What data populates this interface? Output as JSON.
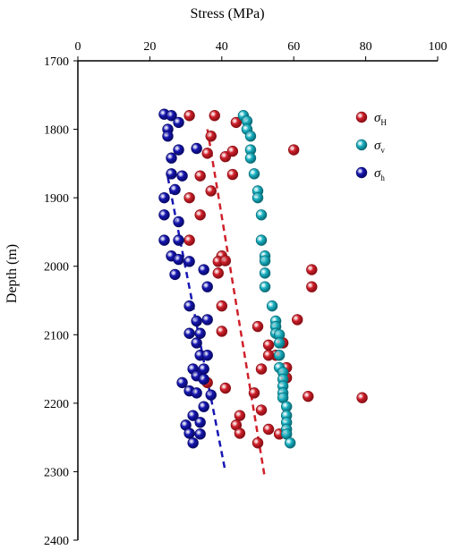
{
  "chart_data": {
    "type": "scatter",
    "xlabel": "Stress (MPa)",
    "ylabel": "Depth (m)",
    "xlim": [
      0,
      100
    ],
    "ylim": [
      1700,
      2400
    ],
    "x_axis_position": "top",
    "y_axis_inverted": true,
    "x_ticks": [
      0,
      20,
      40,
      60,
      80,
      100
    ],
    "y_ticks": [
      1700,
      1800,
      1900,
      2000,
      2100,
      2200,
      2300,
      2400
    ],
    "grid": false,
    "legend_position": "top-right",
    "series": [
      {
        "name": "σH",
        "symbol": "σ",
        "subscript": "H",
        "color": "#d0202a",
        "edge": "#8a0f15",
        "points": [
          [
            31,
            1780
          ],
          [
            38,
            1780
          ],
          [
            44,
            1790
          ],
          [
            37,
            1810
          ],
          [
            36,
            1835
          ],
          [
            41,
            1840
          ],
          [
            43,
            1832
          ],
          [
            60,
            1830
          ],
          [
            34,
            1868
          ],
          [
            43,
            1866
          ],
          [
            37,
            1890
          ],
          [
            31,
            1900
          ],
          [
            34,
            1925
          ],
          [
            31,
            1962
          ],
          [
            40,
            1985
          ],
          [
            39,
            1993
          ],
          [
            41,
            1992
          ],
          [
            39,
            2010
          ],
          [
            65,
            2005
          ],
          [
            65,
            2030
          ],
          [
            40,
            2058
          ],
          [
            50,
            2088
          ],
          [
            61,
            2078
          ],
          [
            40,
            2095
          ],
          [
            53,
            2115
          ],
          [
            57,
            2112
          ],
          [
            55,
            2130
          ],
          [
            53,
            2130
          ],
          [
            58,
            2148
          ],
          [
            51,
            2150
          ],
          [
            58,
            2163
          ],
          [
            36,
            2170
          ],
          [
            41,
            2178
          ],
          [
            49,
            2185
          ],
          [
            64,
            2190
          ],
          [
            79,
            2192
          ],
          [
            51,
            2210
          ],
          [
            45,
            2218
          ],
          [
            44,
            2232
          ],
          [
            45,
            2244
          ],
          [
            53,
            2238
          ],
          [
            56,
            2245
          ],
          [
            50,
            2258
          ]
        ],
        "trend_x": [
          36,
          52
        ],
        "trend_y": [
          1800,
          2310
        ]
      },
      {
        "name": "σv",
        "symbol": "σ",
        "subscript": "v",
        "color": "#1ab3c4",
        "edge": "#0b6d78",
        "points": [
          [
            46,
            1780
          ],
          [
            47,
            1788
          ],
          [
            47,
            1800
          ],
          [
            48,
            1810
          ],
          [
            48,
            1830
          ],
          [
            48,
            1842
          ],
          [
            49,
            1865
          ],
          [
            50,
            1890
          ],
          [
            50,
            1900
          ],
          [
            51,
            1925
          ],
          [
            51,
            1962
          ],
          [
            52,
            1985
          ],
          [
            52,
            1992
          ],
          [
            52,
            2010
          ],
          [
            52,
            2030
          ],
          [
            54,
            2058
          ],
          [
            55,
            2080
          ],
          [
            55,
            2088
          ],
          [
            55,
            2098
          ],
          [
            56,
            2100
          ],
          [
            56,
            2112
          ],
          [
            56,
            2130
          ],
          [
            56,
            2148
          ],
          [
            57,
            2155
          ],
          [
            57,
            2165
          ],
          [
            57,
            2175
          ],
          [
            57,
            2185
          ],
          [
            57,
            2192
          ],
          [
            58,
            2205
          ],
          [
            58,
            2218
          ],
          [
            58,
            2228
          ],
          [
            58,
            2238
          ],
          [
            58,
            2245
          ],
          [
            59,
            2258
          ]
        ],
        "trend_x": [],
        "trend_y": []
      },
      {
        "name": "σh",
        "symbol": "σ",
        "subscript": "h",
        "color": "#1616b3",
        "edge": "#0a0a6a",
        "points": [
          [
            24,
            1778
          ],
          [
            26,
            1780
          ],
          [
            28,
            1790
          ],
          [
            25,
            1800
          ],
          [
            25,
            1810
          ],
          [
            28,
            1830
          ],
          [
            33,
            1828
          ],
          [
            26,
            1842
          ],
          [
            26,
            1865
          ],
          [
            29,
            1868
          ],
          [
            27,
            1888
          ],
          [
            24,
            1900
          ],
          [
            24,
            1925
          ],
          [
            28,
            1935
          ],
          [
            24,
            1962
          ],
          [
            28,
            1962
          ],
          [
            26,
            1985
          ],
          [
            28,
            1990
          ],
          [
            31,
            1993
          ],
          [
            27,
            2012
          ],
          [
            35,
            2005
          ],
          [
            36,
            2030
          ],
          [
            31,
            2058
          ],
          [
            36,
            2078
          ],
          [
            33,
            2080
          ],
          [
            31,
            2098
          ],
          [
            34,
            2098
          ],
          [
            33,
            2112
          ],
          [
            34,
            2130
          ],
          [
            36,
            2130
          ],
          [
            32,
            2150
          ],
          [
            35,
            2150
          ],
          [
            33,
            2160
          ],
          [
            35,
            2165
          ],
          [
            29,
            2170
          ],
          [
            31,
            2182
          ],
          [
            33,
            2185
          ],
          [
            37,
            2188
          ],
          [
            35,
            2205
          ],
          [
            32,
            2218
          ],
          [
            34,
            2228
          ],
          [
            30,
            2232
          ],
          [
            31,
            2244
          ],
          [
            34,
            2245
          ],
          [
            32,
            2258
          ]
        ],
        "trend_x": [
          25,
          41
        ],
        "trend_y": [
          1870,
          2300
        ]
      }
    ]
  }
}
